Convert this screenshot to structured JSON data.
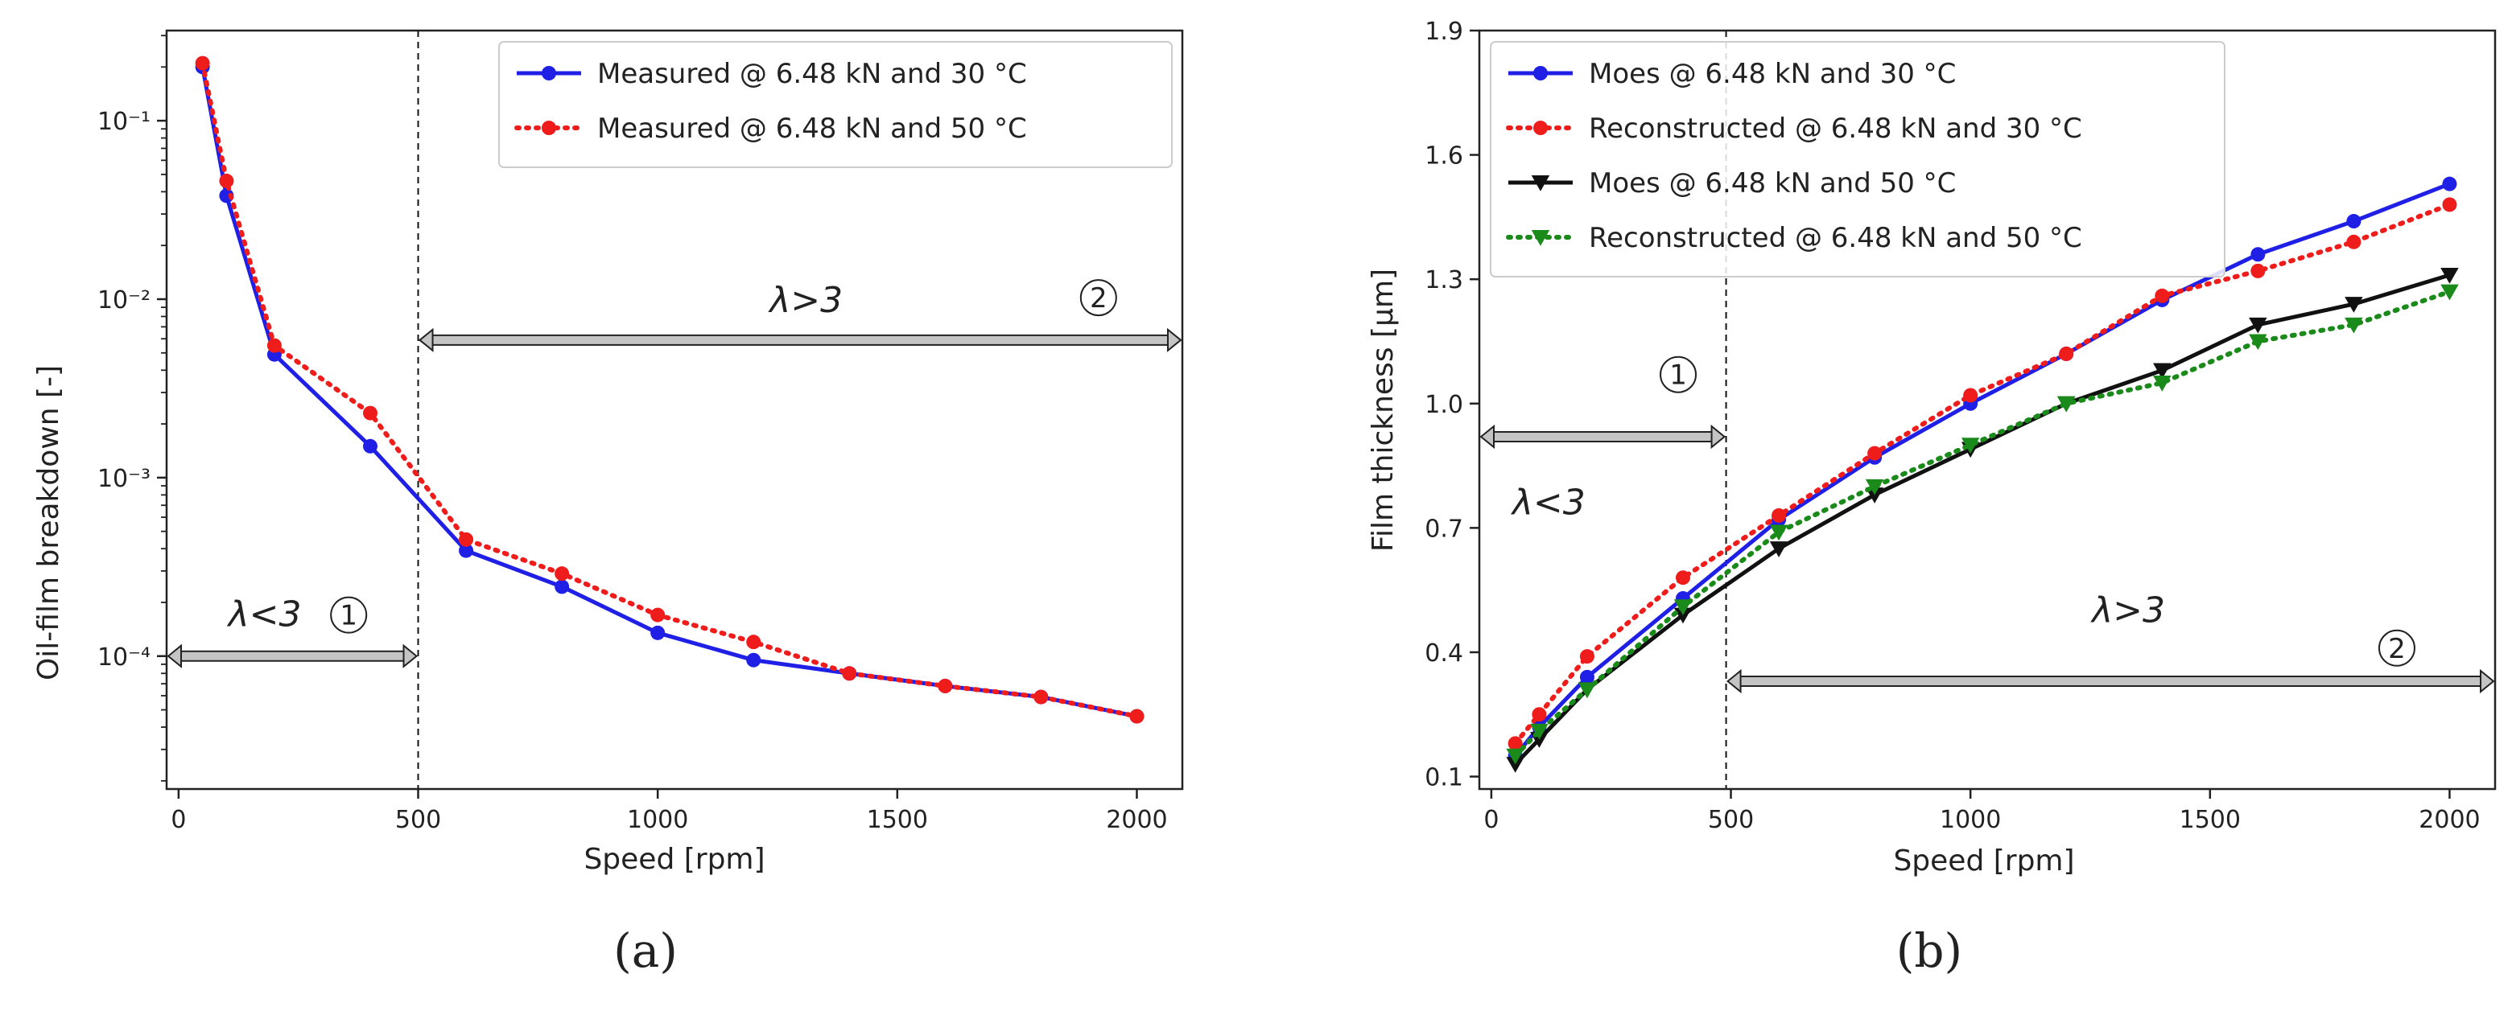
{
  "chart_data": [
    {
      "type": "line",
      "panel_label": "(a)",
      "xlabel": "Speed [rpm]",
      "ylabel": "Oil-film breakdown [-]",
      "yscale": "log",
      "xlim": [
        -25,
        2095
      ],
      "ylim": [
        1.8e-05,
        0.32
      ],
      "xticks": [
        0,
        500,
        1000,
        1500,
        2000
      ],
      "xtick_labels": [
        "0",
        "500",
        "1000",
        "1500",
        "2000"
      ],
      "yticks": [
        0.0001,
        0.001,
        0.01,
        0.1
      ],
      "ytick_labels": [
        "10⁻⁴",
        "10⁻³",
        "10⁻²",
        "10⁻¹"
      ],
      "legend_position": "top-right",
      "series": [
        {
          "name": "Measured @ 6.48 kN and 30 °C",
          "color": "#1f1fe6",
          "style": "solid",
          "marker": "circle",
          "x": [
            50,
            100,
            200,
            400,
            600,
            800,
            1000,
            1200,
            1400,
            1600,
            1800,
            2000
          ],
          "y": [
            0.2,
            0.038,
            0.0049,
            0.0015,
            0.00039,
            0.000245,
            0.000135,
            9.5e-05,
            8e-05,
            6.8e-05,
            5.9e-05,
            4.6e-05
          ]
        },
        {
          "name": "Measured @ 6.48 kN and 50 °C",
          "color": "#ef1c1c",
          "style": "dotted",
          "marker": "circle",
          "x": [
            50,
            100,
            200,
            400,
            600,
            800,
            1000,
            1200,
            1400,
            1600,
            1800,
            2000
          ],
          "y": [
            0.21,
            0.046,
            0.0055,
            0.0023,
            0.00045,
            0.00029,
            0.00017,
            0.00012,
            8e-05,
            6.8e-05,
            5.9e-05,
            4.6e-05
          ]
        }
      ],
      "annotations": {
        "divider_x": 500,
        "region_low": {
          "label": "λ<3",
          "marker": "①",
          "x_from": -25,
          "x_to": 500,
          "y": 0.0001,
          "label_x": 180,
          "label_y": 0.00017,
          "marker_x": 355,
          "marker_y": 0.00017
        },
        "region_high": {
          "label": "λ>3",
          "marker": "②",
          "x_from": 500,
          "x_to": 2095,
          "y": 0.0059,
          "label_x": 1310,
          "label_y": 0.0098,
          "marker_x": 1920,
          "marker_y": 0.0102
        }
      }
    },
    {
      "type": "line",
      "panel_label": "(b)",
      "xlabel": "Speed [rpm]",
      "ylabel": "Film thickness [μm]",
      "yscale": "linear",
      "xlim": [
        -25,
        2095
      ],
      "ylim": [
        0.07,
        1.9
      ],
      "xticks": [
        0,
        500,
        1000,
        1500,
        2000
      ],
      "xtick_labels": [
        "0",
        "500",
        "1000",
        "1500",
        "2000"
      ],
      "yticks": [
        0.1,
        0.4,
        0.7,
        1.0,
        1.3,
        1.6,
        1.9
      ],
      "ytick_labels": [
        "0.1",
        "0.4",
        "0.7",
        "1.0",
        "1.3",
        "1.6",
        "1.9"
      ],
      "legend_position": "top-left",
      "series": [
        {
          "name": "Moes @ 6.48 kN and 30 °C",
          "color": "#1f1fe6",
          "style": "solid",
          "marker": "circle",
          "x": [
            50,
            100,
            200,
            400,
            600,
            800,
            1000,
            1200,
            1400,
            1600,
            1800,
            2000
          ],
          "y": [
            0.15,
            0.22,
            0.34,
            0.53,
            0.72,
            0.87,
            1.0,
            1.12,
            1.25,
            1.36,
            1.44,
            1.53
          ]
        },
        {
          "name": "Reconstructed @ 6.48 kN and 30 °C",
          "color": "#ef1c1c",
          "style": "dotted",
          "marker": "circle",
          "x": [
            50,
            100,
            200,
            400,
            600,
            800,
            1000,
            1200,
            1400,
            1600,
            1800,
            2000
          ],
          "y": [
            0.18,
            0.25,
            0.39,
            0.58,
            0.73,
            0.88,
            1.02,
            1.12,
            1.26,
            1.32,
            1.39,
            1.48
          ]
        },
        {
          "name": "Moes @ 6.48 kN and 50 °C",
          "color": "#111111",
          "style": "solid",
          "marker": "triangle-down",
          "x": [
            50,
            100,
            200,
            400,
            600,
            800,
            1000,
            1200,
            1400,
            1600,
            1800,
            2000
          ],
          "y": [
            0.13,
            0.19,
            0.31,
            0.49,
            0.65,
            0.78,
            0.89,
            1.0,
            1.08,
            1.19,
            1.24,
            1.31
          ]
        },
        {
          "name": "Reconstructed @ 6.48 kN and 50 °C",
          "color": "#1a8a1a",
          "style": "dotted",
          "marker": "triangle-down",
          "x": [
            50,
            100,
            200,
            400,
            600,
            800,
            1000,
            1200,
            1400,
            1600,
            1800,
            2000
          ],
          "y": [
            0.15,
            0.21,
            0.31,
            0.51,
            0.69,
            0.8,
            0.9,
            1.0,
            1.05,
            1.15,
            1.19,
            1.27
          ]
        }
      ],
      "annotations": {
        "divider_x": 490,
        "region_low": {
          "label": "λ<3",
          "marker": "①",
          "x_from": -25,
          "x_to": 490,
          "y": 0.92,
          "label_x": 120,
          "label_y": 0.76,
          "marker_x": 390,
          "marker_y": 1.07
        },
        "region_high": {
          "label": "λ>3",
          "marker": "②",
          "x_from": 490,
          "x_to": 2095,
          "y": 0.33,
          "label_x": 1330,
          "label_y": 0.5,
          "marker_x": 1890,
          "marker_y": 0.41
        }
      }
    }
  ]
}
